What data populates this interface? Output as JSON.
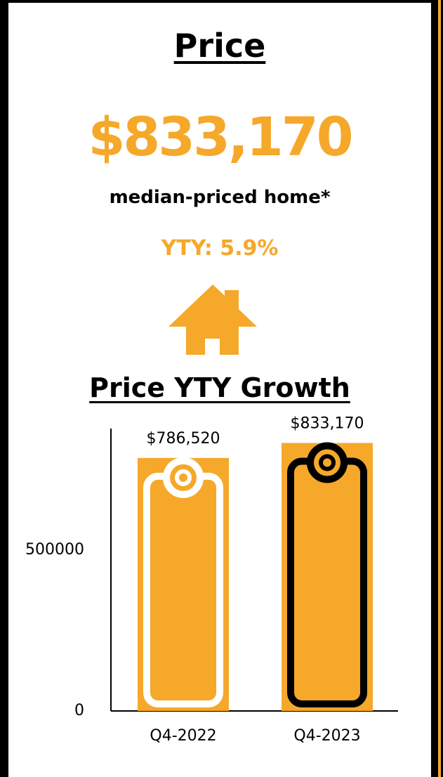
{
  "header": {
    "title": "Price",
    "price": "$833,170",
    "subtitle": "median-priced home*",
    "yty": "YTY: 5.9%"
  },
  "chart_data": {
    "type": "bar",
    "title": "Price YTY Growth",
    "categories": [
      "Q4-2022",
      "Q4-2023"
    ],
    "values": [
      786520,
      833170
    ],
    "value_labels": [
      "$786,520",
      "$833,170"
    ],
    "color": "#f5a82a",
    "ylim": [
      0,
      878000
    ],
    "yticks": [
      0,
      500000
    ],
    "grid": false
  }
}
